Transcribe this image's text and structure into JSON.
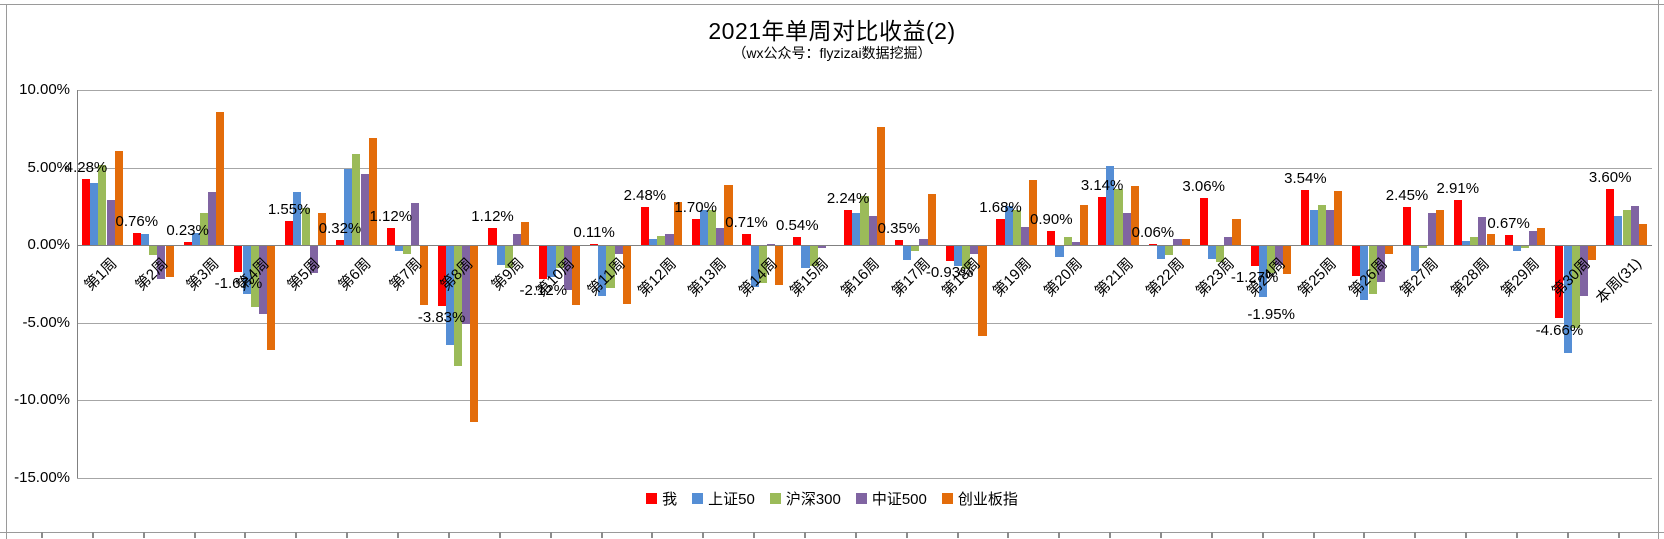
{
  "chart_data": {
    "type": "bar",
    "title": "2021年单周对比收益(2)",
    "subtitle": "（wx公众号：flyzizai数据挖掘）",
    "categories": [
      "第1周",
      "第2周",
      "第3周",
      "第4周",
      "第5周",
      "第6周",
      "第7周",
      "第8周",
      "第9周",
      "第10周",
      "第11周",
      "第12周",
      "第13周",
      "第14周",
      "第15周",
      "第16周",
      "第17周",
      "第18周",
      "第19周",
      "第20周",
      "第21周",
      "第22周",
      "第23周",
      "第24周",
      "第25周",
      "第26周",
      "第27周",
      "第28周",
      "第29周",
      "第30周",
      "本周(31)"
    ],
    "series": [
      {
        "name": "我",
        "color": "#FF0000",
        "values": [
          4.28,
          0.76,
          0.23,
          -1.67,
          1.55,
          0.32,
          1.12,
          -3.83,
          1.12,
          -2.12,
          0.11,
          2.48,
          1.7,
          0.71,
          0.54,
          2.24,
          0.35,
          -0.93,
          1.68,
          0.9,
          3.14,
          0.06,
          3.06,
          -1.27,
          3.54,
          -1.95,
          2.45,
          2.91,
          0.67,
          -4.66,
          3.6
        ]
      },
      {
        "name": "上证50",
        "color": "#558ED5",
        "values": [
          4.0,
          0.75,
          0.8,
          -3.1,
          3.4,
          4.9,
          -0.3,
          -6.4,
          -1.2,
          -2.0,
          -3.2,
          0.4,
          2.3,
          -2.6,
          -1.4,
          2.1,
          -0.9,
          -1.3,
          2.5,
          -0.7,
          5.1,
          -0.8,
          -0.8,
          -3.3,
          2.3,
          -3.5,
          -1.6,
          0.3,
          -0.3,
          -6.9,
          1.9
        ]
      },
      {
        "name": "沪深300",
        "color": "#9BBB59",
        "values": [
          5.2,
          -0.6,
          2.1,
          -3.9,
          2.4,
          5.9,
          -0.5,
          -7.7,
          -1.4,
          -1.4,
          -2.7,
          0.6,
          2.3,
          -2.4,
          -1.3,
          3.2,
          -0.3,
          -1.5,
          2.3,
          0.5,
          3.6,
          -0.6,
          -1.0,
          -1.7,
          2.6,
          -3.1,
          -0.1,
          0.5,
          -0.1,
          -5.3,
          2.3
        ]
      },
      {
        "name": "中证500",
        "color": "#8064A2",
        "values": [
          2.9,
          -2.1,
          3.4,
          -4.4,
          -1.7,
          4.6,
          2.7,
          -5.0,
          0.7,
          -2.8,
          -0.5,
          0.7,
          1.1,
          0.1,
          -0.1,
          1.9,
          0.4,
          -0.5,
          1.2,
          0.2,
          2.1,
          0.4,
          0.5,
          -1.2,
          2.3,
          -2.3,
          2.1,
          1.8,
          0.9,
          -3.2,
          2.5
        ]
      },
      {
        "name": "创业板指",
        "color": "#E36C0A",
        "values": [
          6.1,
          -2.0,
          8.6,
          -6.7,
          2.1,
          6.9,
          -3.8,
          -11.35,
          1.5,
          -3.8,
          -3.7,
          2.8,
          3.9,
          -2.5,
          0.0,
          7.6,
          3.3,
          -5.8,
          4.2,
          2.6,
          3.8,
          0.4,
          1.7,
          -1.8,
          3.5,
          -0.5,
          2.3,
          0.7,
          1.1,
          -0.9,
          1.4
        ]
      }
    ],
    "data_labels": {
      "series": "我",
      "values": [
        "4.28%",
        "0.76%",
        "0.23%",
        "-1.67%",
        "1.55%",
        "0.32%",
        "1.12%",
        "-3.83%",
        "1.12%",
        "-2.12%",
        "0.11%",
        "2.48%",
        "1.70%",
        "0.71%",
        "0.54%",
        "2.24%",
        "0.35%",
        "-0.93%",
        "1.68%",
        "0.90%",
        "3.14%",
        "0.06%",
        "3.06%",
        "-1.27%",
        "3.54%",
        "-1.95%",
        "2.45%",
        "2.91%",
        "0.67%",
        "-4.66%",
        "3.60%"
      ]
    },
    "y_axis": {
      "min": -15,
      "max": 10,
      "step": 5,
      "tick_labels": [
        "10.00%",
        "5.00%",
        "0.00%",
        "-5.00%",
        "-10.00%",
        "-15.00%"
      ]
    },
    "grid": true,
    "legend_position": "bottom",
    "legend": [
      "我",
      "上证50",
      "沪深300",
      "中证500",
      "创业板指"
    ],
    "colors": {
      "grid": "#a6a6a6",
      "axis": "#808080"
    }
  }
}
